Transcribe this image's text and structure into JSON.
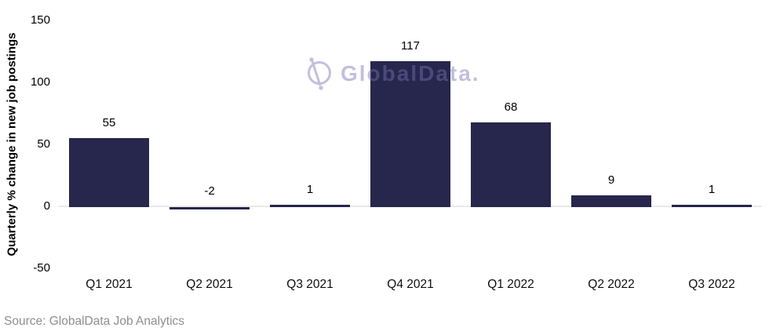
{
  "chart_data": {
    "type": "bar",
    "title": "",
    "categories": [
      "Q1 2021",
      "Q2 2021",
      "Q3 2021",
      "Q4 2021",
      "Q1 2022",
      "Q2 2022",
      "Q3 2022"
    ],
    "values": [
      55,
      -2,
      1,
      117,
      68,
      9,
      1
    ],
    "data_labels": [
      "55",
      "-2",
      "1",
      "117",
      "68",
      "9",
      "1"
    ],
    "xlabel": "",
    "ylabel": "Quarterly % change in new job postings",
    "ylim": [
      -50,
      150
    ],
    "yticks": [
      150,
      100,
      50,
      0,
      -50
    ],
    "grid": "zero-baseline-only",
    "legend": "none"
  },
  "watermark": {
    "text": "GlobalData."
  },
  "source": "Source: GlobalData Job Analytics",
  "colors": {
    "bar": "#27264C",
    "zero_line": "#EAEAEC",
    "watermark": "#7A73B4",
    "source_text": "#8E8E8E",
    "label_text": "#000000",
    "background": "#FFFFFF"
  }
}
